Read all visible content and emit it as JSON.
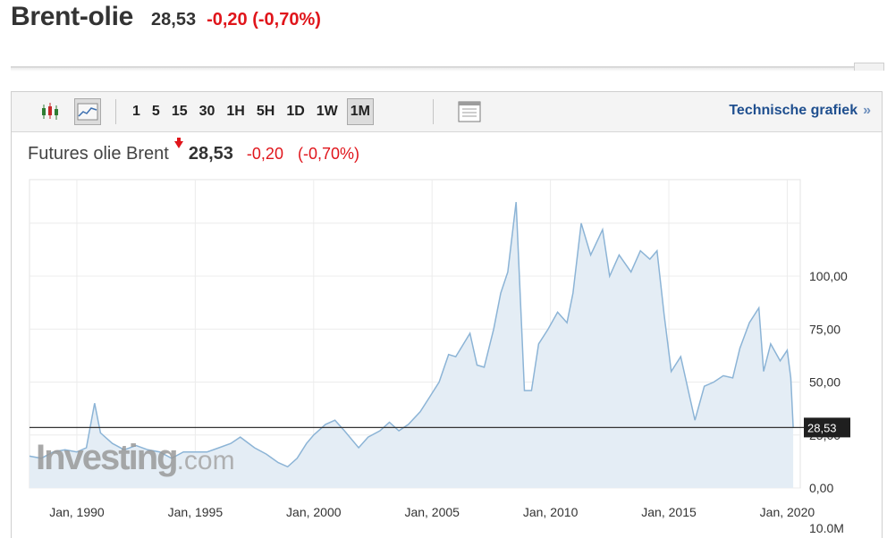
{
  "header": {
    "title": "Brent-olie",
    "price": "28,53",
    "change": "-0,20 (-0,70%)"
  },
  "toolbar": {
    "icons": [
      "candlestick-icon",
      "area-chart-icon",
      "layout-icon"
    ],
    "periods": [
      "1",
      "5",
      "15",
      "30",
      "1H",
      "5H",
      "1D",
      "1W",
      "1M"
    ],
    "active_period": "1M",
    "tech_link": "Technische grafiek",
    "tech_link_arrows": "»"
  },
  "quote": {
    "name": "Futures olie Brent",
    "price": "28,53",
    "change": "-0,20",
    "change_pct": "(-0,70%)"
  },
  "watermark": {
    "brand": "Investing",
    "suffix": ".com"
  },
  "colors": {
    "down": "#e0151b",
    "line": "#8cb4d6",
    "area": "#e4edf5",
    "link": "#1f4f8f"
  },
  "chart_data": {
    "type": "area",
    "title": "",
    "xlabel": "",
    "ylabel": "",
    "x_tick_labels": [
      "Jan, 1990",
      "Jan, 1995",
      "Jan, 2000",
      "Jan, 2005",
      "Jan, 2010",
      "Jan, 2015",
      "Jan, 2020"
    ],
    "y_tick_labels": [
      "100,00",
      "75,00",
      "50,00",
      "25,00",
      "0,00"
    ],
    "volume_label": "10.0M",
    "ylim": [
      0,
      135
    ],
    "last_value_label": "28,53",
    "last_value": 28.53,
    "grid": true,
    "series": [
      {
        "points": [
          [
            1988.0,
            15
          ],
          [
            1988.5,
            14
          ],
          [
            1989.0,
            17
          ],
          [
            1989.5,
            18
          ],
          [
            1990.0,
            17
          ],
          [
            1990.4,
            19
          ],
          [
            1990.75,
            40
          ],
          [
            1991.0,
            26
          ],
          [
            1991.5,
            21
          ],
          [
            1992.0,
            18
          ],
          [
            1992.5,
            20
          ],
          [
            1993.0,
            18
          ],
          [
            1993.5,
            17
          ],
          [
            1994.0,
            14
          ],
          [
            1994.5,
            17
          ],
          [
            1995.0,
            17
          ],
          [
            1995.5,
            17
          ],
          [
            1996.0,
            19
          ],
          [
            1996.5,
            21
          ],
          [
            1996.9,
            24
          ],
          [
            1997.5,
            19
          ],
          [
            1998.0,
            16
          ],
          [
            1998.5,
            12
          ],
          [
            1998.9,
            10
          ],
          [
            1999.3,
            14
          ],
          [
            1999.7,
            21
          ],
          [
            2000.0,
            25
          ],
          [
            2000.5,
            30
          ],
          [
            2000.9,
            32
          ],
          [
            2001.3,
            27
          ],
          [
            2001.9,
            19
          ],
          [
            2002.3,
            24
          ],
          [
            2002.8,
            27
          ],
          [
            2003.2,
            31
          ],
          [
            2003.6,
            27
          ],
          [
            2004.0,
            30
          ],
          [
            2004.5,
            36
          ],
          [
            2004.9,
            43
          ],
          [
            2005.3,
            50
          ],
          [
            2005.7,
            63
          ],
          [
            2006.0,
            62
          ],
          [
            2006.6,
            73
          ],
          [
            2006.9,
            58
          ],
          [
            2007.2,
            57
          ],
          [
            2007.6,
            75
          ],
          [
            2007.9,
            92
          ],
          [
            2008.2,
            102
          ],
          [
            2008.55,
            135
          ],
          [
            2008.9,
            46
          ],
          [
            2009.2,
            46
          ],
          [
            2009.5,
            68
          ],
          [
            2009.9,
            75
          ],
          [
            2010.3,
            83
          ],
          [
            2010.7,
            78
          ],
          [
            2010.95,
            92
          ],
          [
            2011.3,
            125
          ],
          [
            2011.7,
            110
          ],
          [
            2012.2,
            122
          ],
          [
            2012.5,
            100
          ],
          [
            2012.9,
            110
          ],
          [
            2013.4,
            102
          ],
          [
            2013.8,
            112
          ],
          [
            2014.2,
            108
          ],
          [
            2014.5,
            112
          ],
          [
            2014.8,
            82
          ],
          [
            2015.1,
            55
          ],
          [
            2015.5,
            62
          ],
          [
            2015.9,
            42
          ],
          [
            2016.1,
            32
          ],
          [
            2016.5,
            48
          ],
          [
            2016.9,
            50
          ],
          [
            2017.3,
            53
          ],
          [
            2017.7,
            52
          ],
          [
            2018.0,
            66
          ],
          [
            2018.4,
            78
          ],
          [
            2018.8,
            85
          ],
          [
            2019.0,
            55
          ],
          [
            2019.3,
            68
          ],
          [
            2019.7,
            60
          ],
          [
            2020.0,
            65
          ],
          [
            2020.15,
            52
          ],
          [
            2020.25,
            28.53
          ]
        ]
      }
    ]
  }
}
